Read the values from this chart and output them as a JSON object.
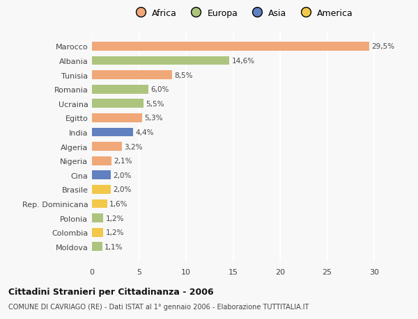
{
  "categories": [
    "Moldova",
    "Colombia",
    "Polonia",
    "Rep. Dominicana",
    "Brasile",
    "Cina",
    "Nigeria",
    "Algeria",
    "India",
    "Egitto",
    "Ucraina",
    "Romania",
    "Tunisia",
    "Albania",
    "Marocco"
  ],
  "values": [
    1.1,
    1.2,
    1.2,
    1.6,
    2.0,
    2.0,
    2.1,
    3.2,
    4.4,
    5.3,
    5.5,
    6.0,
    8.5,
    14.6,
    29.5
  ],
  "labels": [
    "1,1%",
    "1,2%",
    "1,2%",
    "1,6%",
    "2,0%",
    "2,0%",
    "2,1%",
    "3,2%",
    "4,4%",
    "5,3%",
    "5,5%",
    "6,0%",
    "8,5%",
    "14,6%",
    "29,5%"
  ],
  "colors": [
    "#adc47e",
    "#f2c84b",
    "#adc47e",
    "#f2c84b",
    "#f2c84b",
    "#6080c0",
    "#f0a878",
    "#f0a878",
    "#6080c0",
    "#f0a878",
    "#adc47e",
    "#adc47e",
    "#f0a878",
    "#adc47e",
    "#f0a878"
  ],
  "continent_colors": {
    "Africa": "#f0a878",
    "Europa": "#adc47e",
    "Asia": "#6080c0",
    "America": "#f2c84b"
  },
  "title": "Cittadini Stranieri per Cittadinanza - 2006",
  "subtitle": "COMUNE DI CAVRIAGO (RE) - Dati ISTAT al 1° gennaio 2006 - Elaborazione TUTTITALIA.IT",
  "xlim": [
    0,
    32
  ],
  "xticks": [
    0,
    5,
    10,
    15,
    20,
    25,
    30
  ],
  "background_color": "#f8f8f8",
  "plot_bg_color": "#f8f8f8",
  "bar_height": 0.62,
  "grid_color": "#ffffff",
  "label_fontsize": 7.5,
  "text_color": "#444444"
}
